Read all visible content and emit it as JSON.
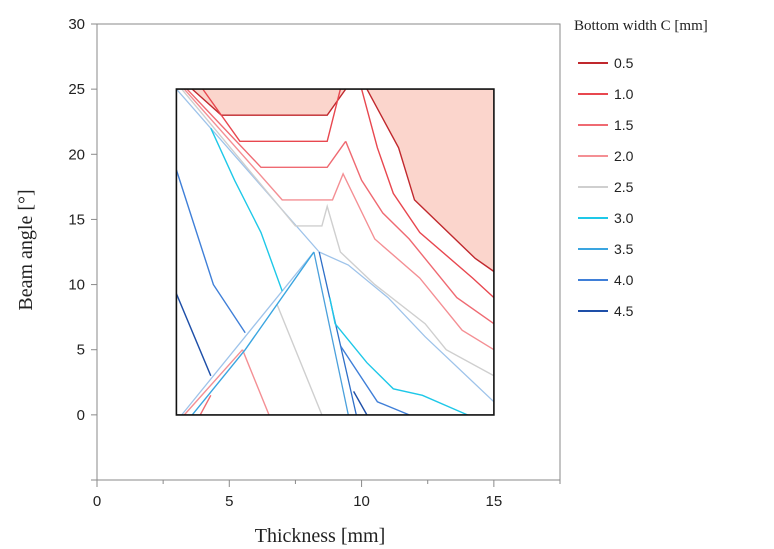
{
  "chart_data": {
    "type": "contour",
    "title": "",
    "xlabel": "Thickness [mm]",
    "ylabel": "Beam angle [°]",
    "xlim": [
      0,
      17.5
    ],
    "ylim": [
      -5,
      30
    ],
    "xticks": [
      0,
      5,
      10,
      15
    ],
    "yticks": [
      0,
      5,
      10,
      15,
      20,
      25,
      30
    ],
    "grid": false,
    "legend_title": "Bottom width C [mm]",
    "legend_position": "right",
    "domain_polygon": [
      [
        3,
        0
      ],
      [
        15,
        0
      ],
      [
        15,
        25
      ],
      [
        3,
        25
      ]
    ],
    "shaded_region": {
      "color": "#fbd5cc",
      "points": [
        [
          3.6,
          25
        ],
        [
          15,
          25
        ],
        [
          15,
          11
        ],
        [
          14.3,
          12
        ],
        [
          12,
          16.5
        ],
        [
          11.4,
          20.5
        ],
        [
          10.2,
          25
        ],
        [
          9.4,
          25
        ],
        [
          8.7,
          23
        ],
        [
          4.7,
          23
        ]
      ]
    },
    "series": [
      {
        "name": "0.5",
        "color": "#c0282d",
        "segments": [
          [
            [
              3.6,
              25
            ],
            [
              4.7,
              23
            ],
            [
              8.7,
              23
            ],
            [
              9.4,
              25
            ]
          ],
          [
            [
              10.2,
              25
            ],
            [
              11.4,
              20.5
            ],
            [
              12,
              16.5
            ],
            [
              14.3,
              12
            ],
            [
              15,
              11
            ]
          ]
        ]
      },
      {
        "name": "1.0",
        "color": "#e8474f",
        "segments": [
          [
            [
              4,
              25
            ],
            [
              5.4,
              21
            ],
            [
              8.7,
              21
            ],
            [
              9.2,
              25
            ]
          ],
          [
            [
              10,
              25
            ],
            [
              10.6,
              20.5
            ],
            [
              11.2,
              17
            ],
            [
              12.2,
              14
            ],
            [
              14.2,
              10.5
            ],
            [
              15,
              9
            ]
          ]
        ]
      },
      {
        "name": "1.5",
        "color": "#ef6a72",
        "segments": [
          [
            [
              3.4,
              25
            ],
            [
              6.2,
              19
            ],
            [
              8.7,
              19
            ],
            [
              9.4,
              21
            ]
          ],
          [
            [
              9.4,
              21
            ],
            [
              10,
              18
            ],
            [
              10.8,
              15.5
            ],
            [
              11.8,
              13.5
            ],
            [
              13.6,
              9
            ],
            [
              15,
              7
            ]
          ],
          [
            [
              3.9,
              0
            ],
            [
              4.3,
              1.5
            ]
          ]
        ]
      },
      {
        "name": "2.0",
        "color": "#f48f94",
        "segments": [
          [
            [
              3.3,
              25
            ],
            [
              7,
              16.5
            ],
            [
              8.9,
              16.5
            ],
            [
              9.3,
              18.5
            ],
            [
              10.5,
              13.5
            ],
            [
              12.2,
              10.5
            ],
            [
              13.8,
              6.5
            ],
            [
              15,
              5
            ]
          ],
          [
            [
              5.5,
              5
            ],
            [
              6.5,
              0
            ]
          ],
          [
            [
              3.3,
              0
            ],
            [
              5.5,
              5
            ]
          ]
        ]
      },
      {
        "name": "2.5",
        "color": "#cfcfcf",
        "segments": [
          [
            [
              3.2,
              25
            ],
            [
              7.5,
              14.5
            ],
            [
              8.5,
              14.5
            ],
            [
              8.7,
              16
            ],
            [
              9.2,
              12.5
            ],
            [
              10.5,
              10
            ],
            [
              12.4,
              7
            ],
            [
              13.2,
              5
            ],
            [
              15,
              3
            ]
          ],
          [
            [
              6.8,
              8.5
            ],
            [
              8.5,
              0
            ]
          ]
        ]
      },
      {
        "name": "3.0",
        "color": "#1ec8e8",
        "segments": [
          [
            [
              4.3,
              22
            ],
            [
              5.2,
              18
            ],
            [
              6.2,
              14
            ],
            [
              7,
              9.5
            ]
          ],
          [
            [
              8.8,
              9
            ],
            [
              9,
              7
            ],
            [
              10.2,
              4
            ],
            [
              11.2,
              2
            ],
            [
              12.3,
              1.5
            ],
            [
              14,
              0
            ]
          ]
        ]
      },
      {
        "name": "3.5",
        "color": "#3aa5e0",
        "segments": [
          [
            [
              3.6,
              0
            ],
            [
              5.6,
              5
            ],
            [
              8.2,
              12.5
            ]
          ]
        ]
      },
      {
        "name": "4.0",
        "color": "#3f7fd8",
        "segments": [
          [
            [
              3,
              18.8
            ],
            [
              4.4,
              10
            ],
            [
              5.6,
              6.3
            ]
          ],
          [
            [
              9.2,
              5.3
            ],
            [
              10.6,
              1
            ],
            [
              11.8,
              0
            ]
          ]
        ]
      },
      {
        "name": "4.5",
        "color": "#1e4fa8",
        "segments": [
          [
            [
              3,
              9.3
            ],
            [
              4.3,
              3
            ]
          ],
          [
            [
              9.7,
              1.8
            ],
            [
              10.2,
              0
            ]
          ]
        ]
      }
    ],
    "overlay_lines": [
      {
        "color": "#9ec3ea",
        "points": [
          [
            3,
            25
          ],
          [
            8.4,
            12.5
          ],
          [
            9.5,
            11.5
          ],
          [
            11,
            9
          ],
          [
            12.4,
            6
          ],
          [
            15,
            1
          ]
        ]
      },
      {
        "color": "#9ec3ea",
        "points": [
          [
            3.2,
            0
          ],
          [
            8.2,
            12.5
          ]
        ]
      },
      {
        "color": "#4aa0dc",
        "points": [
          [
            8.2,
            12.5
          ],
          [
            9.5,
            0
          ]
        ]
      },
      {
        "color": "#2f6fc8",
        "points": [
          [
            8.4,
            12.5
          ],
          [
            9.8,
            0
          ]
        ]
      }
    ]
  }
}
